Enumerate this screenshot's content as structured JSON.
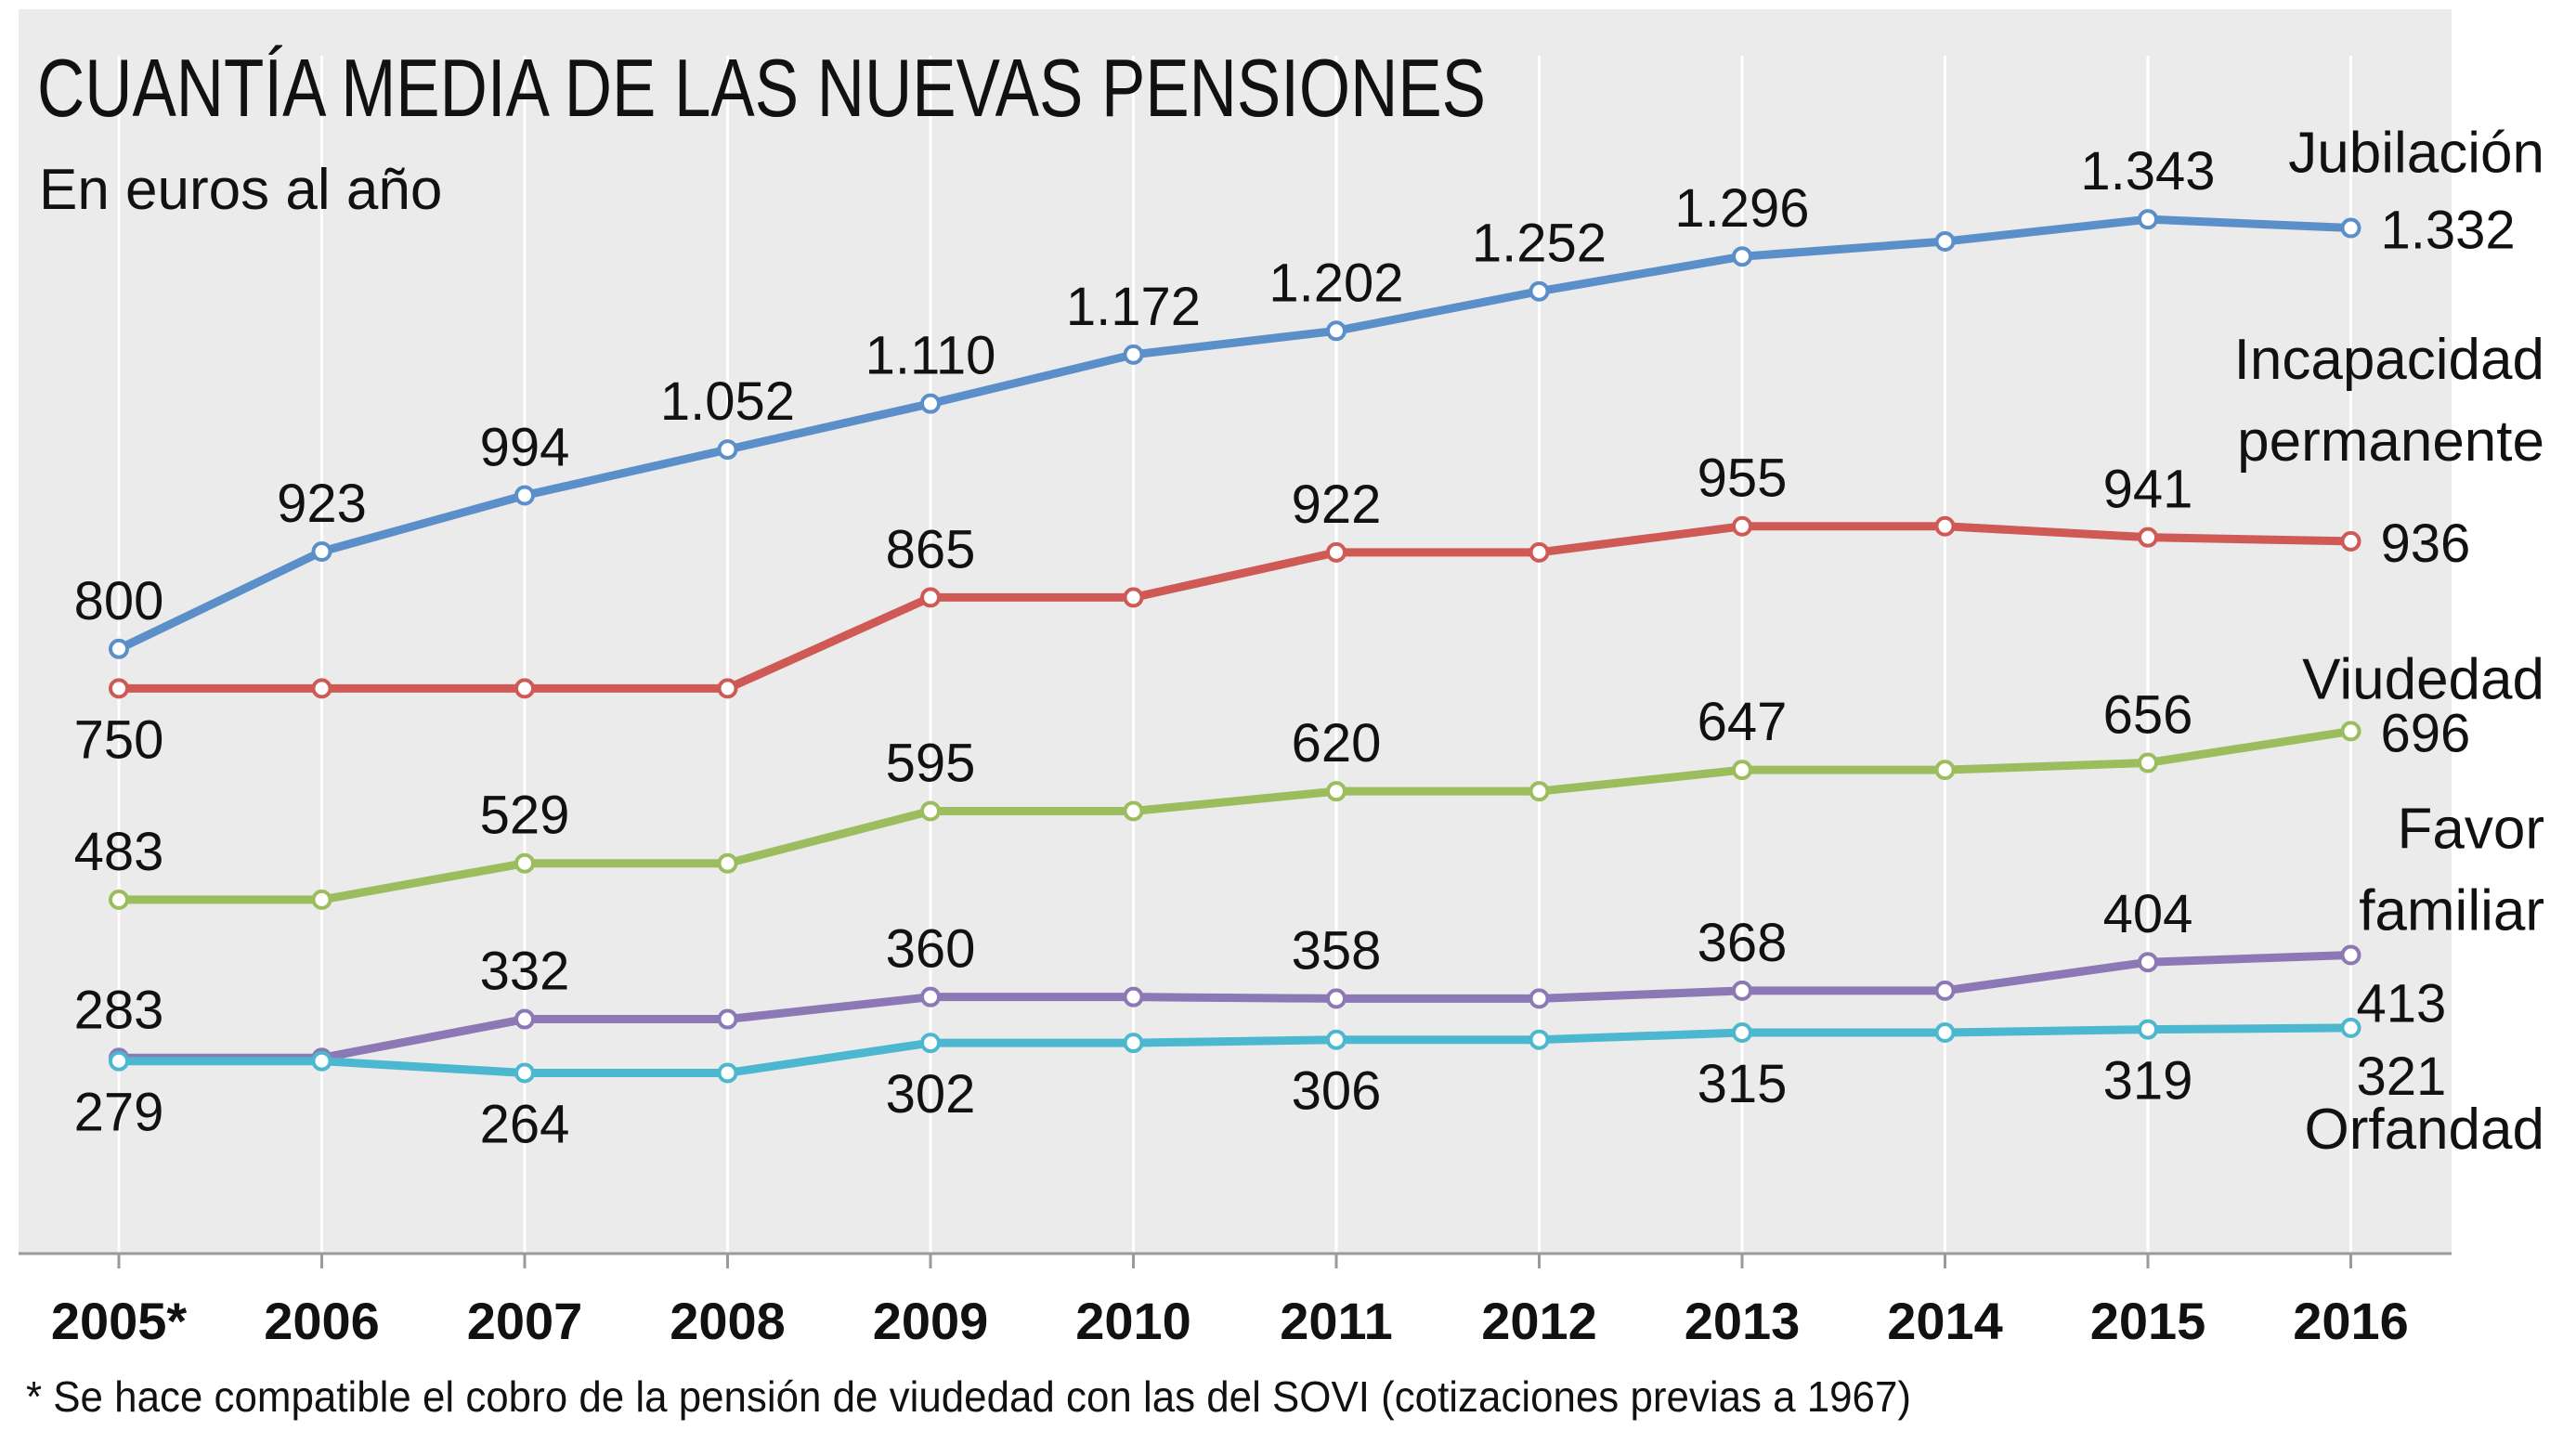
{
  "chart_data": {
    "type": "line",
    "title": "CUANTÍA MEDIA DE LAS NUEVAS PENSIONES",
    "subtitle": "En euros al año",
    "footnote": "* Se hace compatible el cobro de la pensión de viudedad con las del SOVI (cotizaciones previas a 1967)",
    "categories": [
      "2005*",
      "2006",
      "2007",
      "2008",
      "2009",
      "2010",
      "2011",
      "2012",
      "2013",
      "2014",
      "2015",
      "2016"
    ],
    "ylim": [
      200,
      1450
    ],
    "grid": {
      "vertical": true,
      "horizontal": false
    },
    "series": [
      {
        "name": "Jubilación",
        "name_lines": [
          "Jubilación"
        ],
        "color": "#5b8fc9",
        "values": [
          800,
          923,
          994,
          1052,
          1110,
          1172,
          1202,
          1252,
          1296,
          1315,
          1343,
          1332
        ],
        "labels": [
          "800",
          "923",
          "994",
          "1.052",
          "1.110",
          "1.172",
          "1.202",
          "1.252",
          "1.296",
          "",
          "1.343",
          "1.332"
        ],
        "label_side": [
          "above",
          "above",
          "above",
          "above",
          "above",
          "above",
          "above",
          "above",
          "above",
          "above",
          "above",
          "right"
        ]
      },
      {
        "name": "Incapacidad permanente",
        "name_lines": [
          "Incapacidad",
          "permanente"
        ],
        "color": "#cf5a55",
        "values": [
          750,
          750,
          750,
          750,
          865,
          865,
          922,
          922,
          955,
          955,
          941,
          936
        ],
        "labels": [
          "750",
          "",
          "",
          "",
          "865",
          "",
          "922",
          "",
          "955",
          "",
          "941",
          "936"
        ],
        "label_side": [
          "below",
          "above",
          "above",
          "above",
          "above",
          "above",
          "above",
          "above",
          "above",
          "above",
          "above",
          "right"
        ]
      },
      {
        "name": "Viudedad",
        "name_lines": [
          "Viudedad"
        ],
        "color": "#9bbd5e",
        "values": [
          483,
          483,
          529,
          529,
          595,
          595,
          620,
          620,
          647,
          647,
          656,
          696
        ],
        "labels": [
          "483",
          "",
          "529",
          "",
          "595",
          "",
          "620",
          "",
          "647",
          "",
          "656",
          "696"
        ],
        "label_side": [
          "above",
          "above",
          "above",
          "above",
          "above",
          "above",
          "above",
          "above",
          "above",
          "above",
          "above",
          "right"
        ]
      },
      {
        "name": "Favor familiar",
        "name_lines": [
          "Favor",
          "familiar"
        ],
        "color": "#8c78b4",
        "values": [
          283,
          283,
          332,
          332,
          360,
          360,
          358,
          358,
          368,
          368,
          404,
          413
        ],
        "labels": [
          "283",
          "",
          "332",
          "",
          "360",
          "",
          "358",
          "",
          "368",
          "",
          "404",
          "413"
        ],
        "label_side": [
          "above",
          "above",
          "above",
          "above",
          "above",
          "above",
          "above",
          "above",
          "above",
          "above",
          "above",
          "right-below"
        ]
      },
      {
        "name": "Orfandad",
        "name_lines": [
          "Orfandad"
        ],
        "color": "#4bb8cf",
        "values": [
          279,
          279,
          264,
          264,
          302,
          302,
          306,
          306,
          315,
          315,
          319,
          321
        ],
        "labels": [
          "279",
          "",
          "264",
          "",
          "302",
          "",
          "306",
          "",
          "315",
          "",
          "319",
          "321"
        ],
        "label_side": [
          "below",
          "below",
          "below",
          "below",
          "below",
          "below",
          "below",
          "below",
          "below",
          "below",
          "below",
          "right-below"
        ]
      }
    ]
  }
}
